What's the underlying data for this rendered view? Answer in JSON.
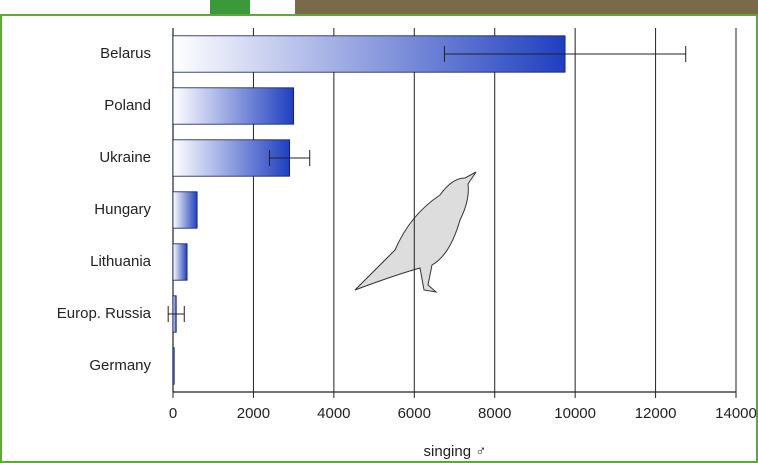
{
  "chart_data": {
    "type": "bar",
    "orientation": "horizontal",
    "categories": [
      "Belarus",
      "Poland",
      "Ukraine",
      "Hungary",
      "Lithuania",
      "Europ. Russia",
      "Germany"
    ],
    "values": [
      9750,
      3000,
      2900,
      600,
      350,
      80,
      30
    ],
    "errors": [
      3000,
      null,
      500,
      null,
      null,
      200,
      null
    ],
    "color": "#1f3fbf",
    "xlabel": "singing ♂",
    "xlim": [
      0,
      14000
    ],
    "xticks": [
      0,
      2000,
      4000,
      6000,
      8000,
      10000,
      12000,
      14000
    ],
    "grid": true
  }
}
